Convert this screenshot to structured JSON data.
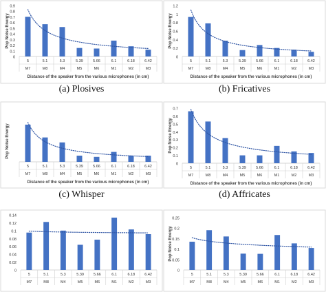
{
  "colors": {
    "bar": "#4472c4",
    "trend": "#2f55a4",
    "frame": "#d9d9d9",
    "text": "#333333"
  },
  "chart_data": [
    {
      "type": "bar",
      "caption": "(a) Plosives",
      "distances": [
        "5",
        "5.1",
        "5.3",
        "5.39",
        "5.66",
        "6.1",
        "6.18",
        "6.42"
      ],
      "categories": [
        "M7",
        "M8",
        "M4",
        "M5",
        "M6",
        "M1",
        "M2",
        "M3"
      ],
      "values": [
        0.7,
        0.57,
        0.52,
        0.15,
        0.14,
        0.28,
        0.18,
        0.12
      ],
      "ylim": [
        0,
        0.9
      ],
      "yticks": [
        "0",
        "0.1",
        "0.2",
        "0.3",
        "0.4",
        "0.5",
        "0.6",
        "0.7",
        "0.8",
        "0.9"
      ],
      "ylabel": "Pop Noise Energy",
      "xlabel": "Distance of the speaker from the various microphones (in cm)",
      "trendline": "dotted"
    },
    {
      "type": "bar",
      "caption": "(b) Fricatives",
      "distances": [
        "5",
        "5.1",
        "5.3",
        "5.39",
        "5.66",
        "6.1",
        "6.18",
        "6.42"
      ],
      "categories": [
        "M7",
        "M8",
        "M4",
        "M5",
        "M6",
        "M1",
        "M2",
        "M3"
      ],
      "values": [
        0.93,
        0.78,
        0.37,
        0.15,
        0.27,
        0.2,
        0.16,
        0.11
      ],
      "ylim": [
        0,
        1.2
      ],
      "yticks": [
        "0",
        "0.2",
        "0.4",
        "0.6",
        "0.8",
        "1",
        "1.2"
      ],
      "ylabel": "Pop Noise Energy",
      "xlabel": "Distance of the speaker from the various microphones (in cm)",
      "trendline": "dotted"
    },
    {
      "type": "bar",
      "caption": "(c) Whisper",
      "distances": [
        "5",
        "5.1",
        "5.3",
        "5.39",
        "5.66",
        "6.1",
        "6.18",
        "6.42"
      ],
      "categories": [
        "M7",
        "M8",
        "M4",
        "M5",
        "M6",
        "M1",
        "M2",
        "M3"
      ],
      "values": [
        0.9,
        0.59,
        0.47,
        0.15,
        0.12,
        0.24,
        0.15,
        0.15
      ],
      "ylim": [
        0,
        1.0
      ],
      "yticks": [],
      "ylabel": "Pop Noise Energy",
      "xlabel": "Distance of the speaker from the various microphones (in cm)",
      "trendline": "dotted"
    },
    {
      "type": "bar",
      "caption": "(d) Affricates",
      "distances": [
        "5",
        "5.1",
        "5.3",
        "5.39",
        "5.66",
        "6.1",
        "6.18",
        "6.42"
      ],
      "categories": [
        "M7",
        "M8",
        "M4",
        "M5",
        "M6",
        "M1",
        "M2",
        "M3"
      ],
      "values": [
        0.66,
        0.53,
        0.32,
        0.1,
        0.1,
        0.22,
        0.15,
        0.13
      ],
      "ylim": [
        0,
        0.7
      ],
      "yticks": [
        "0",
        "0.1",
        "0.2",
        "0.3",
        "0.4",
        "0.5",
        "0.6",
        "0.7"
      ],
      "ylabel": "Pop Noise Energy",
      "xlabel": "Distance of the speaker from the various microphones (in cm)",
      "trendline": "dotted"
    },
    {
      "type": "bar",
      "caption": "",
      "distances": [
        "5",
        "5.1",
        "5.3",
        "5.39",
        "5.66",
        "6.1",
        "6.18",
        "6.42"
      ],
      "categories": [
        "M7",
        "M8",
        "M4",
        "M5",
        "M6",
        "M1",
        "M2",
        "M3"
      ],
      "values": [
        0.095,
        0.122,
        0.1,
        0.064,
        0.077,
        0.133,
        0.103,
        0.091
      ],
      "ylim": [
        0,
        0.14
      ],
      "yticks": [
        "0",
        "0.02",
        "0.04",
        "0.06",
        "0.08",
        "0.1",
        "0.12",
        "0.14"
      ],
      "ylabel": "",
      "xlabel": "",
      "trendline": "dotted"
    },
    {
      "type": "bar",
      "caption": "",
      "distances": [
        "5",
        "5.1",
        "5.3",
        "5.39",
        "5.66",
        "6.1",
        "6.18",
        "6.42"
      ],
      "categories": [
        "M7",
        "M8",
        "M4",
        "M5",
        "M6",
        "M1",
        "M2",
        "M3"
      ],
      "values": [
        0.135,
        0.19,
        0.16,
        0.078,
        0.077,
        0.167,
        0.127,
        0.105
      ],
      "ylim": [
        0,
        0.25
      ],
      "yticks": [
        "0",
        "0.05",
        "0.1",
        "0.15",
        "0.2",
        "0.25"
      ],
      "ylabel": "Pop Noise Energy",
      "xlabel": "",
      "trendline": "dotted"
    }
  ]
}
